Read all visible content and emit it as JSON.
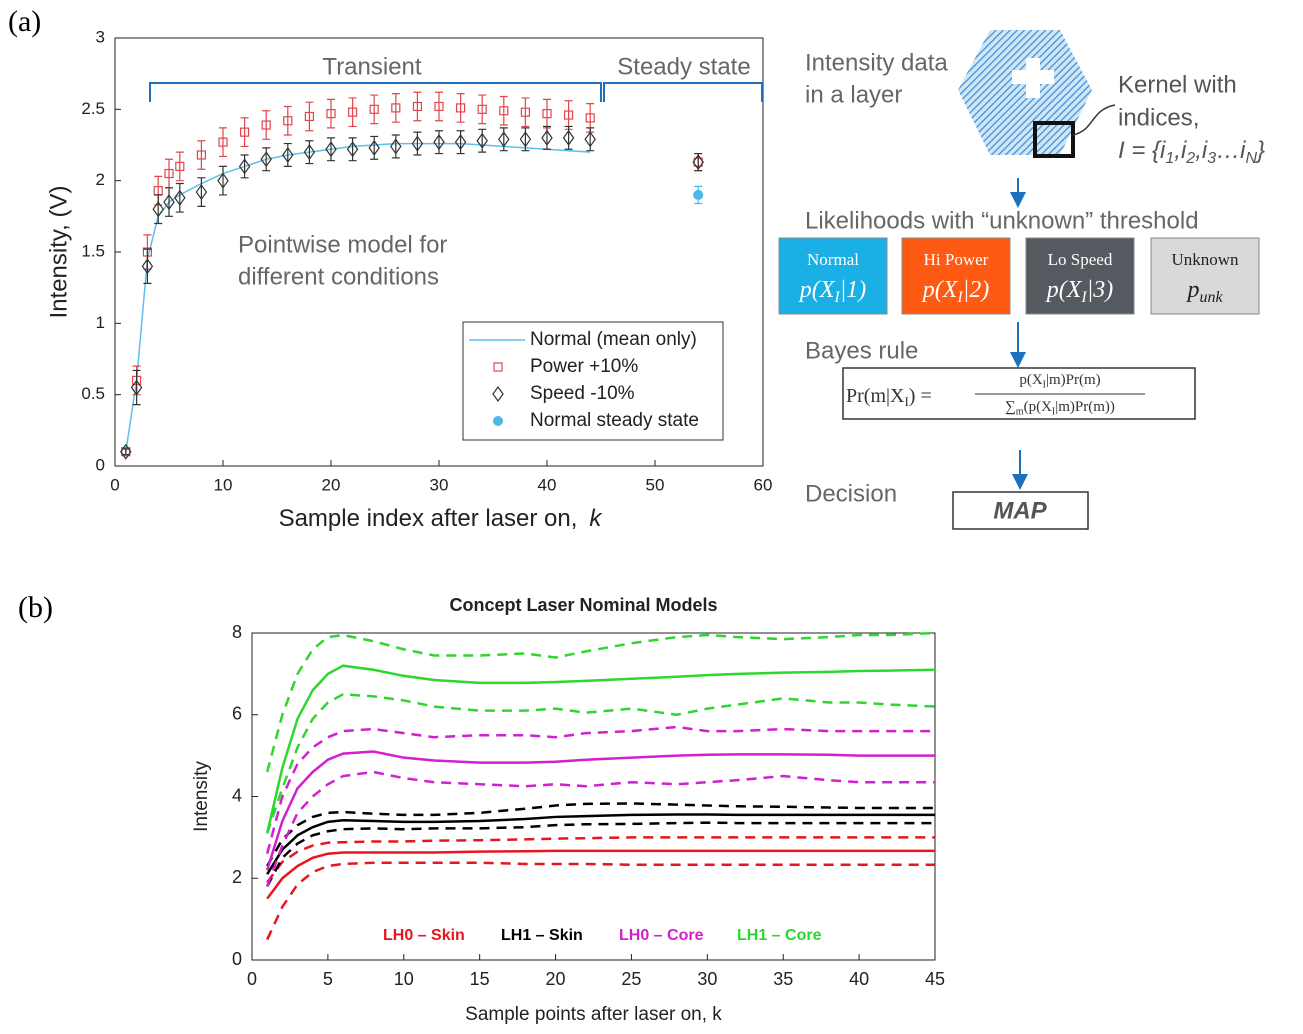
{
  "panel_labels": [
    "(a)",
    "(b)"
  ],
  "chart_data": [
    {
      "type": "errorbar",
      "xlabel": "Sample index after laser on,",
      "xlabel_symbol": "k",
      "ylabel": "Intensity, (V)",
      "xlim": [
        0,
        60
      ],
      "xticks": [
        0,
        10,
        20,
        30,
        40,
        50,
        60
      ],
      "ylim": [
        0,
        3
      ],
      "yticks": [
        0,
        0.5,
        1,
        1.5,
        2,
        2.5,
        3
      ],
      "legend": "lower right",
      "annotations": [
        "Transient",
        "Steady state",
        "Pointwise model for",
        "different conditions"
      ],
      "series": [
        {
          "name": "Normal (mean only)",
          "style": "line",
          "color": "#5bc0eb",
          "x": [
            1,
            2,
            3,
            4,
            5,
            6,
            8,
            10,
            12,
            14,
            16,
            18,
            20,
            22,
            24,
            26,
            28,
            30,
            32,
            34,
            36,
            38,
            40,
            42,
            44
          ],
          "values": [
            0.1,
            0.6,
            1.45,
            1.75,
            1.85,
            1.9,
            1.98,
            2.05,
            2.1,
            2.15,
            2.18,
            2.2,
            2.22,
            2.24,
            2.25,
            2.26,
            2.26,
            2.26,
            2.26,
            2.25,
            2.24,
            2.23,
            2.22,
            2.21,
            2.2
          ]
        },
        {
          "name": "Power +10%",
          "style": "square",
          "color": "#e0474c",
          "x": [
            1,
            2,
            3,
            4,
            5,
            6,
            8,
            10,
            12,
            14,
            16,
            18,
            20,
            22,
            24,
            26,
            28,
            30,
            32,
            34,
            36,
            38,
            40,
            42,
            44,
            54
          ],
          "values": [
            0.1,
            0.6,
            1.5,
            1.93,
            2.05,
            2.1,
            2.18,
            2.27,
            2.34,
            2.39,
            2.42,
            2.45,
            2.47,
            2.48,
            2.5,
            2.51,
            2.52,
            2.52,
            2.51,
            2.5,
            2.49,
            2.48,
            2.47,
            2.46,
            2.44,
            2.13
          ],
          "errors": [
            0.02,
            0.1,
            0.12,
            0.1,
            0.1,
            0.1,
            0.1,
            0.1,
            0.1,
            0.1,
            0.1,
            0.1,
            0.1,
            0.1,
            0.1,
            0.1,
            0.1,
            0.1,
            0.1,
            0.1,
            0.1,
            0.1,
            0.1,
            0.1,
            0.1,
            0.06
          ]
        },
        {
          "name": "Speed -10%",
          "style": "diamond",
          "color": "#333333",
          "x": [
            1,
            2,
            3,
            4,
            5,
            6,
            8,
            10,
            12,
            14,
            16,
            18,
            20,
            22,
            24,
            26,
            28,
            30,
            32,
            34,
            36,
            38,
            40,
            42,
            44,
            54
          ],
          "values": [
            0.1,
            0.55,
            1.4,
            1.8,
            1.85,
            1.88,
            1.92,
            2.0,
            2.1,
            2.15,
            2.18,
            2.2,
            2.22,
            2.22,
            2.23,
            2.24,
            2.26,
            2.27,
            2.27,
            2.28,
            2.29,
            2.29,
            2.3,
            2.3,
            2.29,
            2.13
          ],
          "errors": [
            0.02,
            0.12,
            0.12,
            0.1,
            0.1,
            0.1,
            0.1,
            0.1,
            0.08,
            0.08,
            0.08,
            0.08,
            0.08,
            0.08,
            0.08,
            0.08,
            0.08,
            0.08,
            0.08,
            0.08,
            0.08,
            0.08,
            0.08,
            0.08,
            0.08,
            0.06
          ]
        },
        {
          "name": "Normal steady state",
          "style": "dot",
          "color": "#4db8e8",
          "x": [
            54
          ],
          "values": [
            1.9
          ],
          "errors": [
            0.06
          ]
        }
      ]
    },
    {
      "type": "line",
      "title": "Concept Laser Nominal Models",
      "xlabel": "Sample points after laser on, k",
      "ylabel": "Intensity",
      "xlim": [
        0,
        45
      ],
      "xticks": [
        0,
        5,
        10,
        15,
        20,
        25,
        30,
        35,
        40,
        45
      ],
      "ylim": [
        0,
        8
      ],
      "yticks": [
        0,
        2,
        4,
        6,
        8
      ],
      "x": [
        1,
        2,
        3,
        4,
        5,
        6,
        8,
        10,
        12,
        15,
        18,
        20,
        22,
        25,
        28,
        30,
        32,
        35,
        38,
        40,
        42,
        45
      ],
      "series": [
        {
          "name": "LH0 – Skin",
          "color": "#e8141e",
          "dashed": false,
          "values": [
            1.5,
            2.0,
            2.3,
            2.5,
            2.6,
            2.63,
            2.63,
            2.63,
            2.63,
            2.65,
            2.66,
            2.67,
            2.67,
            2.67,
            2.67,
            2.67,
            2.67,
            2.67,
            2.67,
            2.67,
            2.67,
            2.67
          ]
        },
        {
          "color": "#e8141e",
          "dashed": true,
          "values": [
            1.9,
            2.4,
            2.65,
            2.8,
            2.87,
            2.88,
            2.9,
            2.9,
            2.92,
            2.93,
            2.95,
            2.97,
            2.98,
            3.0,
            3.0,
            3.0,
            3.0,
            3.0,
            3.0,
            3.0,
            3.0,
            3.0
          ]
        },
        {
          "color": "#e8141e",
          "dashed": true,
          "values": [
            0.5,
            1.3,
            1.85,
            2.15,
            2.3,
            2.35,
            2.38,
            2.38,
            2.38,
            2.38,
            2.35,
            2.35,
            2.35,
            2.33,
            2.33,
            2.33,
            2.33,
            2.33,
            2.33,
            2.33,
            2.33,
            2.33
          ]
        },
        {
          "name": "LH1 – Skin",
          "color": "#000000",
          "dashed": false,
          "values": [
            2.1,
            2.7,
            3.05,
            3.25,
            3.38,
            3.42,
            3.4,
            3.38,
            3.38,
            3.4,
            3.45,
            3.5,
            3.52,
            3.55,
            3.56,
            3.56,
            3.55,
            3.55,
            3.55,
            3.55,
            3.55,
            3.55
          ]
        },
        {
          "color": "#000000",
          "dashed": true,
          "values": [
            2.3,
            2.95,
            3.3,
            3.5,
            3.6,
            3.62,
            3.58,
            3.55,
            3.55,
            3.6,
            3.7,
            3.78,
            3.82,
            3.83,
            3.8,
            3.78,
            3.76,
            3.75,
            3.73,
            3.72,
            3.72,
            3.72
          ]
        },
        {
          "color": "#000000",
          "dashed": true,
          "values": [
            1.8,
            2.5,
            2.85,
            3.05,
            3.15,
            3.2,
            3.22,
            3.2,
            3.22,
            3.22,
            3.25,
            3.3,
            3.32,
            3.33,
            3.35,
            3.36,
            3.35,
            3.35,
            3.35,
            3.35,
            3.35,
            3.35
          ]
        },
        {
          "name": "LH0 – Core",
          "color": "#d21fd2",
          "dashed": false,
          "values": [
            2.2,
            3.4,
            4.2,
            4.6,
            4.9,
            5.05,
            5.1,
            4.95,
            4.88,
            4.83,
            4.83,
            4.85,
            4.9,
            4.95,
            5.0,
            5.02,
            5.03,
            5.03,
            5.02,
            5.0,
            5.0,
            5.0
          ]
        },
        {
          "color": "#d21fd2",
          "dashed": true,
          "values": [
            2.6,
            4.0,
            4.8,
            5.2,
            5.45,
            5.6,
            5.65,
            5.55,
            5.45,
            5.5,
            5.5,
            5.45,
            5.55,
            5.6,
            5.7,
            5.6,
            5.6,
            5.65,
            5.6,
            5.6,
            5.6,
            5.6
          ]
        },
        {
          "color": "#d21fd2",
          "dashed": true,
          "values": [
            1.8,
            2.8,
            3.6,
            4.0,
            4.3,
            4.5,
            4.6,
            4.45,
            4.35,
            4.3,
            4.25,
            4.3,
            4.25,
            4.35,
            4.3,
            4.35,
            4.4,
            4.5,
            4.4,
            4.35,
            4.35,
            4.35
          ]
        },
        {
          "name": "LH1 – Core",
          "color": "#2ed62e",
          "dashed": false,
          "values": [
            3.1,
            4.7,
            5.9,
            6.6,
            7.0,
            7.2,
            7.1,
            6.95,
            6.85,
            6.78,
            6.78,
            6.8,
            6.83,
            6.88,
            6.93,
            6.97,
            7.0,
            7.03,
            7.05,
            7.07,
            7.08,
            7.1
          ]
        },
        {
          "color": "#2ed62e",
          "dashed": true,
          "values": [
            4.6,
            6.0,
            7.0,
            7.6,
            7.9,
            7.95,
            7.8,
            7.6,
            7.45,
            7.45,
            7.5,
            7.4,
            7.55,
            7.75,
            7.9,
            7.95,
            7.9,
            7.85,
            7.9,
            7.95,
            7.95,
            8.0
          ]
        },
        {
          "color": "#2ed62e",
          "dashed": true,
          "values": [
            3.1,
            4.2,
            5.2,
            5.9,
            6.3,
            6.5,
            6.45,
            6.35,
            6.2,
            6.1,
            6.1,
            6.15,
            6.05,
            6.15,
            6.0,
            6.15,
            6.25,
            6.4,
            6.3,
            6.3,
            6.25,
            6.2
          ]
        }
      ]
    }
  ],
  "diagram": {
    "layer_label": [
      "Intensity data",
      "in a layer"
    ],
    "kernel_label": [
      "Kernel with",
      "indices,"
    ],
    "kernel_set": [
      "I = {i",
      "1",
      ",i",
      "2",
      ",i",
      "3",
      "…i",
      "N",
      "}"
    ],
    "likelihood_title": "Likelihoods with “unknown” threshold",
    "models": [
      {
        "name": "Normal",
        "formula": [
          "p(X",
          "I",
          "|1)"
        ]
      },
      {
        "name": "Hi Power",
        "formula": [
          "p(X",
          "I",
          "|2)"
        ]
      },
      {
        "name": "Lo Speed",
        "formula": [
          "p(X",
          "I",
          "|3)"
        ]
      },
      {
        "name": "Unknown",
        "formula": [
          "p",
          "unk"
        ]
      }
    ],
    "bayes_title": "Bayes rule",
    "bayes_lhs": [
      "Pr(m|X",
      "I",
      ")  ="
    ],
    "bayes_numerator": [
      "p(X",
      "I",
      "|m)Pr(m)"
    ],
    "bayes_denominator": [
      "∑",
      "m",
      "(p(X",
      "I",
      "|m)Pr(m))"
    ],
    "decision_title": "Decision",
    "decision": "MAP"
  }
}
